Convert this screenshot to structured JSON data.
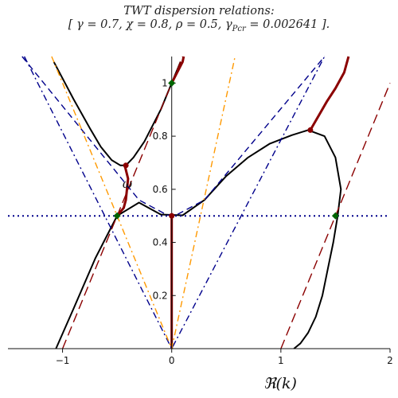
{
  "chart_data": {
    "type": "line",
    "title": "TWT dispersion relations:",
    "subtitle": "[ γ = 0.7, χ = 0.8, ρ = 0.5, γPcr = 0.002641 ].",
    "subtitle_parts": {
      "open": "[",
      "gamma": "γ = 0.7,",
      "chi": "χ = 0.8,",
      "rho": "ρ = 0.5,",
      "gp_sym": "γ",
      "gp_sub": "Pcr",
      "gp_val": " = 0.002641",
      "close": "]."
    },
    "xlabel": "ℜ(k)",
    "ylabel": "",
    "omega_label": "ω",
    "xlim": [
      -1.5,
      2.0
    ],
    "ylim": [
      0.0,
      1.1
    ],
    "x_ticks": [
      "−1",
      "0",
      "1",
      "2"
    ],
    "x_tick_values": [
      -1,
      0,
      1,
      2
    ],
    "y_ticks": [
      "0.2",
      "0.4",
      "0.6",
      "0.8",
      "1"
    ],
    "y_tick_values": [
      0.2,
      0.4,
      0.6,
      0.8,
      1.0
    ],
    "parameters": {
      "gamma": 0.7,
      "chi": 0.8,
      "rho": 0.5,
      "gamma_Pcr": 0.002641
    },
    "colors": {
      "main_curve": "#000000",
      "complex_branch": "#8b0000",
      "light_line": "#8b0000",
      "dispersion_asymptote": "#00008b",
      "beam_line": "#ff9900",
      "horizontal_line": "#00008b",
      "marker": "#006400"
    },
    "series": [
      {
        "style": "solid-black",
        "segments": [
          {
            "x": [
              -1.06,
              -0.9,
              -0.7,
              -0.5,
              -0.3,
              -0.1,
              0.1,
              0.3,
              0.5,
              0.7,
              0.9,
              1.1,
              1.25,
              1.4,
              1.5,
              1.55,
              1.52,
              1.48,
              1.43,
              1.38,
              1.32,
              1.25,
              1.18,
              1.12
            ],
            "y": [
              0.0,
              0.15,
              0.34,
              0.5,
              0.55,
              0.505,
              0.502,
              0.56,
              0.65,
              0.72,
              0.772,
              0.804,
              0.823,
              0.8,
              0.72,
              0.6,
              0.5,
              0.4,
              0.3,
              0.2,
              0.12,
              0.06,
              0.02,
              0.0
            ]
          },
          {
            "x": [
              -1.08,
              -0.9,
              -0.75,
              -0.65,
              -0.55,
              -0.47,
              -0.42,
              -0.35,
              -0.25,
              -0.1,
              0.0,
              0.08
            ],
            "y": [
              1.08,
              0.94,
              0.83,
              0.76,
              0.71,
              0.69,
              0.69,
              0.72,
              0.78,
              0.9,
              1.0,
              1.08
            ]
          }
        ]
      },
      {
        "style": "solid-darkred-complex",
        "segments": [
          {
            "x": [
              0.0,
              0.0
            ],
            "y": [
              0.0,
              0.5
            ]
          },
          {
            "x": [
              -0.5,
              -0.44,
              -0.42,
              -0.41,
              -0.4,
              -0.43
            ],
            "y": [
              0.5,
              0.53,
              0.56,
              0.6,
              0.64,
              0.69
            ]
          },
          {
            "x": [
              0.0,
              0.05,
              0.1,
              0.11
            ],
            "y": [
              1.0,
              1.04,
              1.08,
              1.1
            ]
          },
          {
            "x": [
              1.27,
              1.35,
              1.42,
              1.5,
              1.58,
              1.62
            ],
            "y": [
              0.823,
              0.88,
              0.93,
              0.98,
              1.04,
              1.1
            ]
          }
        ]
      },
      {
        "style": "longdash-darkred",
        "segments": [
          {
            "x": [
              -1.0,
              0.1
            ],
            "y": [
              0.0,
              1.1
            ]
          },
          {
            "x": [
              1.0,
              2.0
            ],
            "y": [
              0.0,
              1.0
            ]
          }
        ]
      },
      {
        "style": "dash-navy",
        "segments": [
          {
            "x": [
              -1.37,
              -0.3,
              -0.05,
              0.0,
              0.05,
              0.3,
              1.4
            ],
            "y": [
              1.1,
              0.56,
              0.505,
              0.5,
              0.505,
              0.56,
              1.1
            ]
          }
        ]
      },
      {
        "style": "dashdot-navy",
        "segments": [
          {
            "x": [
              -1.35,
              0.0,
              1.4
            ],
            "y": [
              1.1,
              0.0,
              1.1
            ]
          }
        ]
      },
      {
        "style": "dashdot-orange",
        "segments": [
          {
            "x": [
              -1.1,
              0.0,
              0.58
            ],
            "y": [
              1.1,
              0.0,
              1.1
            ]
          }
        ]
      },
      {
        "style": "dotted-navy",
        "segments": [
          {
            "x": [
              -1.5,
              2.0
            ],
            "y": [
              0.5,
              0.5
            ]
          }
        ]
      }
    ],
    "branch_points": [
      {
        "x": -0.42,
        "y": 0.69,
        "color": "#8b0000"
      },
      {
        "x": 0.0,
        "y": 0.5,
        "color": "#8b0000"
      },
      {
        "x": 1.27,
        "y": 0.823,
        "color": "#8b0000"
      }
    ],
    "markers": [
      {
        "x": 0.0,
        "y": 1.0
      },
      {
        "x": -0.5,
        "y": 0.5
      },
      {
        "x": 1.5,
        "y": 0.5
      }
    ]
  }
}
